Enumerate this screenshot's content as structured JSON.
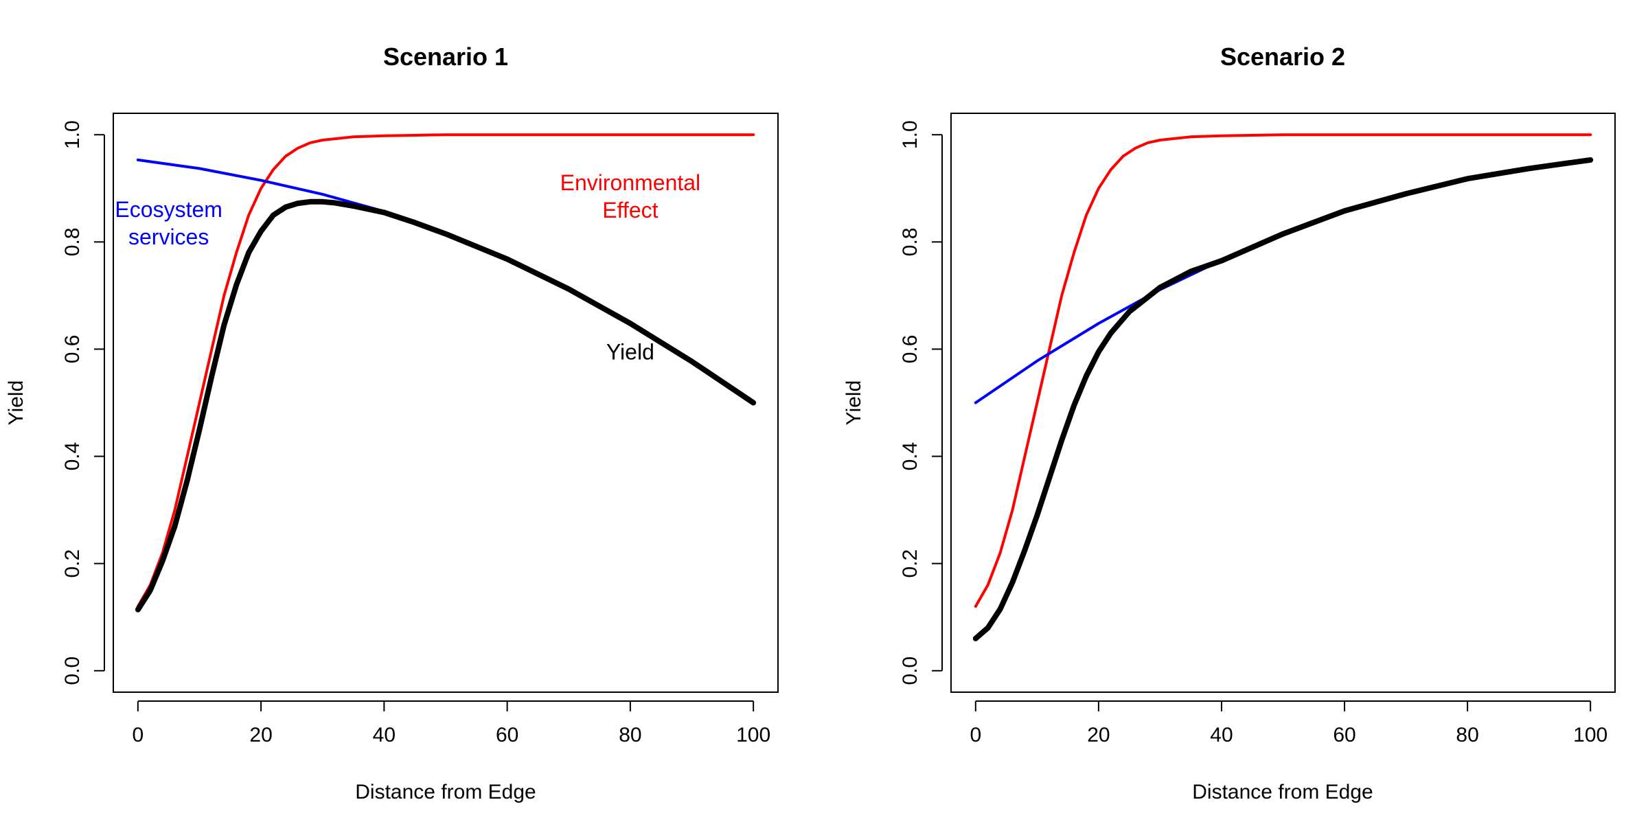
{
  "chart_data": [
    {
      "type": "line",
      "title": "Scenario 1",
      "xlabel": "Distance from Edge",
      "ylabel": "Yield",
      "xlim": [
        -4,
        104
      ],
      "ylim": [
        -0.04,
        1.04
      ],
      "x_ticks": [
        0,
        20,
        40,
        60,
        80,
        100
      ],
      "y_ticks": [
        "0.0",
        "0.2",
        "0.4",
        "0.6",
        "0.8",
        "1.0"
      ],
      "grid": false,
      "series": [
        {
          "color": "#ff0000",
          "x": [
            0,
            2,
            4,
            6,
            8,
            10,
            12,
            14,
            16,
            18,
            20,
            22,
            24,
            26,
            28,
            30,
            35,
            40,
            45,
            50,
            60,
            70,
            80,
            90,
            100
          ],
          "y": [
            0.12,
            0.16,
            0.22,
            0.3,
            0.4,
            0.5,
            0.6,
            0.7,
            0.78,
            0.85,
            0.9,
            0.935,
            0.96,
            0.975,
            0.985,
            0.99,
            0.996,
            0.998,
            0.999,
            1.0,
            1.0,
            1.0,
            1.0,
            1.0,
            1.0
          ]
        },
        {
          "color": "#0000ff",
          "x": [
            0,
            10,
            20,
            30,
            40,
            50,
            60,
            70,
            80,
            90,
            100
          ],
          "y": [
            0.953,
            0.937,
            0.915,
            0.889,
            0.857,
            0.815,
            0.768,
            0.712,
            0.648,
            0.577,
            0.5
          ]
        },
        {
          "color": "#000000",
          "x": [
            0,
            2,
            4,
            6,
            8,
            10,
            12,
            14,
            16,
            18,
            20,
            22,
            24,
            26,
            28,
            30,
            32,
            35,
            40,
            45,
            50,
            60,
            70,
            80,
            90,
            100
          ],
          "y": [
            0.114,
            0.15,
            0.205,
            0.27,
            0.355,
            0.45,
            0.55,
            0.645,
            0.72,
            0.78,
            0.82,
            0.85,
            0.865,
            0.872,
            0.875,
            0.875,
            0.873,
            0.867,
            0.855,
            0.836,
            0.815,
            0.768,
            0.712,
            0.648,
            0.577,
            0.5
          ]
        }
      ],
      "annotations": [
        {
          "lines": [
            "Ecosystem",
            "services"
          ],
          "x": 5,
          "y": 0.835,
          "color": "#0000ff"
        },
        {
          "lines": [
            "Environmental",
            "Effect"
          ],
          "x": 80,
          "y": 0.885,
          "color": "#ff0000"
        },
        {
          "lines": [
            "Yield"
          ],
          "x": 80,
          "y": 0.595,
          "color": "#000000"
        }
      ]
    },
    {
      "type": "line",
      "title": "Scenario 2",
      "xlabel": "Distance from Edge",
      "ylabel": "Yield",
      "xlim": [
        -4,
        104
      ],
      "ylim": [
        -0.04,
        1.04
      ],
      "x_ticks": [
        0,
        20,
        40,
        60,
        80,
        100
      ],
      "y_ticks": [
        "0.0",
        "0.2",
        "0.4",
        "0.6",
        "0.8",
        "1.0"
      ],
      "grid": false,
      "series": [
        {
          "color": "#ff0000",
          "x": [
            0,
            2,
            4,
            6,
            8,
            10,
            12,
            14,
            16,
            18,
            20,
            22,
            24,
            26,
            28,
            30,
            35,
            40,
            45,
            50,
            60,
            70,
            80,
            90,
            100
          ],
          "y": [
            0.12,
            0.16,
            0.22,
            0.3,
            0.4,
            0.5,
            0.6,
            0.7,
            0.78,
            0.85,
            0.9,
            0.935,
            0.96,
            0.975,
            0.985,
            0.99,
            0.996,
            0.998,
            0.999,
            1.0,
            1.0,
            1.0,
            1.0,
            1.0,
            1.0
          ]
        },
        {
          "color": "#0000ff",
          "x": [
            0,
            10,
            20,
            30,
            40,
            50,
            60,
            70,
            80,
            90,
            100
          ],
          "y": [
            0.5,
            0.578,
            0.648,
            0.711,
            0.766,
            0.816,
            0.858,
            0.89,
            0.918,
            0.937,
            0.953
          ]
        },
        {
          "color": "#000000",
          "x": [
            0,
            2,
            4,
            6,
            8,
            10,
            12,
            14,
            16,
            18,
            20,
            22,
            25,
            30,
            35,
            40,
            50,
            60,
            70,
            80,
            90,
            100
          ],
          "y": [
            0.06,
            0.08,
            0.115,
            0.165,
            0.225,
            0.29,
            0.36,
            0.43,
            0.495,
            0.55,
            0.595,
            0.63,
            0.67,
            0.715,
            0.745,
            0.765,
            0.815,
            0.858,
            0.89,
            0.918,
            0.937,
            0.953
          ]
        }
      ],
      "annotations": []
    }
  ]
}
